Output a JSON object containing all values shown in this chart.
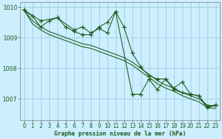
{
  "background_color": "#cceeff",
  "plot_bg_color": "#cceeff",
  "grid_color": "#99ccdd",
  "line_color": "#1a5c1a",
  "title": "Graphe pression niveau de la mer (hPa)",
  "xlim": [
    -0.5,
    23.5
  ],
  "ylim": [
    1006.3,
    1010.15
  ],
  "yticks": [
    1007,
    1008,
    1009,
    1010
  ],
  "xticks": [
    0,
    1,
    2,
    3,
    4,
    5,
    6,
    7,
    8,
    9,
    10,
    11,
    12,
    13,
    14,
    15,
    16,
    17,
    18,
    19,
    20,
    21,
    22,
    23
  ],
  "series1_marker": [
    [
      0,
      1009.9
    ],
    [
      1,
      1009.7
    ],
    [
      2,
      1009.35
    ],
    [
      3,
      1009.55
    ],
    [
      4,
      1009.65
    ],
    [
      5,
      1009.35
    ],
    [
      6,
      1009.2
    ],
    [
      7,
      1009.1
    ],
    [
      8,
      1009.1
    ],
    [
      9,
      1009.35
    ],
    [
      10,
      1009.5
    ],
    [
      11,
      1009.85
    ],
    [
      12,
      1009.35
    ],
    [
      13,
      1008.5
    ],
    [
      14,
      1008.05
    ],
    [
      15,
      1007.75
    ],
    [
      16,
      1007.65
    ],
    [
      17,
      1007.65
    ],
    [
      18,
      1007.3
    ],
    [
      19,
      1007.2
    ],
    [
      20,
      1007.15
    ],
    [
      21,
      1007.1
    ],
    [
      22,
      1006.75
    ],
    [
      23,
      1006.8
    ]
  ],
  "series2_smooth": [
    [
      0,
      1009.9
    ],
    [
      1,
      1009.55
    ],
    [
      2,
      1009.35
    ],
    [
      3,
      1009.2
    ],
    [
      4,
      1009.1
    ],
    [
      5,
      1009.0
    ],
    [
      6,
      1008.9
    ],
    [
      7,
      1008.8
    ],
    [
      8,
      1008.75
    ],
    [
      9,
      1008.65
    ],
    [
      10,
      1008.55
    ],
    [
      11,
      1008.45
    ],
    [
      12,
      1008.35
    ],
    [
      13,
      1008.2
    ],
    [
      14,
      1008.0
    ],
    [
      15,
      1007.8
    ],
    [
      16,
      1007.6
    ],
    [
      17,
      1007.45
    ],
    [
      18,
      1007.35
    ],
    [
      19,
      1007.2
    ],
    [
      20,
      1007.1
    ],
    [
      21,
      1007.0
    ],
    [
      22,
      1006.8
    ],
    [
      23,
      1006.75
    ]
  ],
  "series3_smooth": [
    [
      0,
      1009.9
    ],
    [
      1,
      1009.45
    ],
    [
      2,
      1009.25
    ],
    [
      3,
      1009.1
    ],
    [
      4,
      1009.0
    ],
    [
      5,
      1008.9
    ],
    [
      6,
      1008.8
    ],
    [
      7,
      1008.7
    ],
    [
      8,
      1008.65
    ],
    [
      9,
      1008.55
    ],
    [
      10,
      1008.45
    ],
    [
      11,
      1008.35
    ],
    [
      12,
      1008.25
    ],
    [
      13,
      1008.1
    ],
    [
      14,
      1007.9
    ],
    [
      15,
      1007.7
    ],
    [
      16,
      1007.5
    ],
    [
      17,
      1007.35
    ],
    [
      18,
      1007.25
    ],
    [
      19,
      1007.1
    ],
    [
      20,
      1007.0
    ],
    [
      21,
      1006.9
    ],
    [
      22,
      1006.72
    ],
    [
      23,
      1006.68
    ]
  ],
  "series4_marker": [
    [
      0,
      1009.9
    ],
    [
      2,
      1009.55
    ],
    [
      4,
      1009.65
    ],
    [
      6,
      1009.25
    ],
    [
      7,
      1009.35
    ],
    [
      8,
      1009.15
    ],
    [
      9,
      1009.3
    ],
    [
      10,
      1009.15
    ],
    [
      11,
      1009.85
    ],
    [
      13,
      1007.15
    ],
    [
      14,
      1007.15
    ],
    [
      15,
      1007.65
    ],
    [
      16,
      1007.3
    ],
    [
      17,
      1007.65
    ],
    [
      18,
      1007.35
    ],
    [
      19,
      1007.55
    ],
    [
      20,
      1007.15
    ],
    [
      21,
      1007.1
    ],
    [
      22,
      1006.7
    ],
    [
      23,
      1006.8
    ]
  ]
}
